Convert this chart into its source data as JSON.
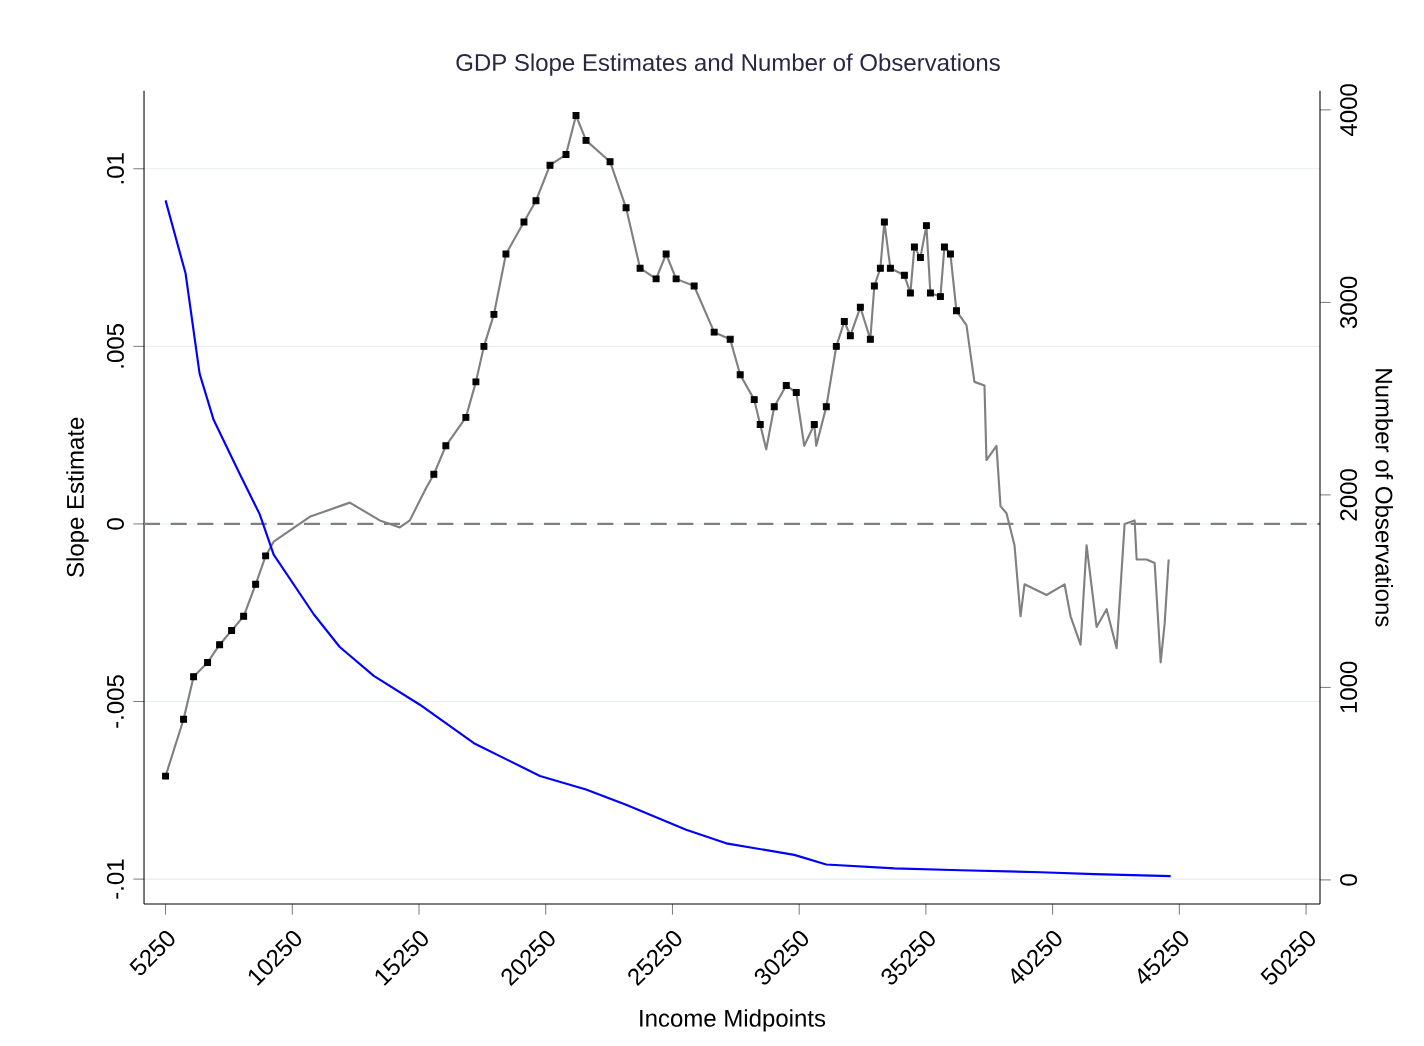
{
  "chart_data": {
    "type": "line",
    "title": "GDP Slope Estimates and Number of Observations",
    "xlabel": "Income Midpoints",
    "ylabel": "Slope Estimate",
    "y2label": "Number of Observations",
    "xlim": [
      4400,
      50800
    ],
    "xticks": [
      5250,
      10250,
      15250,
      20250,
      25250,
      30250,
      35250,
      40250,
      45250,
      50250
    ],
    "ylim": [
      -0.0107,
      0.0122
    ],
    "yticks": [
      {
        "value": -0.01,
        "label": "-.01"
      },
      {
        "value": -0.005,
        "label": "-.005"
      },
      {
        "value": 0,
        "label": "0"
      },
      {
        "value": 0.005,
        "label": ".005"
      },
      {
        "value": 0.01,
        "label": ".01"
      }
    ],
    "y2lim": [
      -125,
      4100
    ],
    "y2ticks": [
      0,
      1000,
      2000,
      3000,
      4000
    ],
    "grid": "y",
    "ref_lines": [
      {
        "axis": "y",
        "value": 0,
        "color": "#808080",
        "line_style": "dashed"
      }
    ],
    "x": [
      5250,
      5961,
      6356,
      6909,
      7383,
      7857,
      8331,
      8805,
      9200,
      9516,
      10938,
      12518,
      13703,
      14493,
      14888,
      15520,
      15836,
      16310,
      17100,
      17495,
      17811,
      18206,
      18680,
      19391,
      19865,
      20418,
      21050,
      21445,
      21840,
      22788,
      23420,
      23973,
      24605,
      25000,
      25395,
      26106,
      26896,
      27528,
      27923,
      28476,
      28713,
      28950,
      29266,
      29740,
      30135,
      30451,
      30846,
      30925,
      31320,
      31715,
      32031,
      32268,
      32663,
      33058,
      33216,
      33453,
      33611,
      33848,
      34401,
      34638,
      34796,
      35033,
      35270,
      35428,
      35823,
      35981,
      36218,
      36455,
      36850,
      37166,
      37561,
      37640,
      38035,
      38193,
      38430,
      38746,
      38983,
      39141,
      40010,
      40721,
      40958,
      41353,
      41590,
      41985,
      42380,
      42775,
      43091,
      43486,
      43565,
      43960,
      44276,
      44513,
      44671,
      44829
    ],
    "series": [
      {
        "color": "#808080",
        "line_style": "solid",
        "values": [
          -0.0071,
          -0.0055,
          -0.0043,
          -0.0039,
          -0.0034,
          -0.003,
          -0.0026,
          -0.0017,
          -0.0009,
          -0.0005,
          0.0002,
          0.0006,
          0.0001,
          -0.0001,
          0.0001,
          0.001,
          0.0014,
          0.0022,
          0.003,
          0.004,
          0.005,
          0.0059,
          0.0076,
          0.0085,
          0.0091,
          0.0101,
          0.0104,
          0.0115,
          0.0108,
          0.0102,
          0.0089,
          0.0072,
          0.0069,
          0.0076,
          0.0069,
          0.0067,
          0.0054,
          0.0052,
          0.0042,
          0.0035,
          0.0028,
          0.0021,
          0.0033,
          0.0039,
          0.0037,
          0.0022,
          0.0028,
          0.0022,
          0.0033,
          0.005,
          0.0057,
          0.0053,
          0.0061,
          0.0052,
          0.0067,
          0.0072,
          0.0085,
          0.0072,
          0.007,
          0.0065,
          0.0078,
          0.0075,
          0.0084,
          0.0065,
          0.0064,
          0.0078,
          0.0076,
          0.006,
          0.0056,
          0.004,
          0.0039,
          0.0018,
          0.0022,
          0.0005,
          0.0003,
          -0.0006,
          -0.0026,
          -0.0017,
          -0.002,
          -0.0017,
          -0.0026,
          -0.0034,
          -0.0006,
          -0.0029,
          -0.0024,
          -0.0035,
          0.0,
          0.0001,
          -0.001,
          -0.001,
          -0.0011,
          -0.0039,
          -0.0028,
          -0.001
        ]
      },
      {
        "type": "scatter",
        "color": "#000000",
        "marker": "square",
        "values": [
          -0.0071,
          -0.0055,
          -0.0043,
          -0.0039,
          -0.0034,
          -0.003,
          -0.0026,
          -0.0017,
          -0.0009,
          null,
          null,
          null,
          null,
          null,
          null,
          null,
          0.0014,
          0.0022,
          0.003,
          0.004,
          0.005,
          0.0059,
          0.0076,
          0.0085,
          0.0091,
          0.0101,
          0.0104,
          0.0115,
          0.0108,
          0.0102,
          0.0089,
          0.0072,
          0.0069,
          0.0076,
          0.0069,
          0.0067,
          0.0054,
          0.0052,
          0.0042,
          0.0035,
          0.0028,
          null,
          0.0033,
          0.0039,
          0.0037,
          null,
          0.0028,
          null,
          0.0033,
          0.005,
          0.0057,
          0.0053,
          0.0061,
          0.0052,
          0.0067,
          0.0072,
          0.0085,
          0.0072,
          0.007,
          0.0065,
          0.0078,
          0.0075,
          0.0084,
          0.0065,
          0.0064,
          0.0078,
          0.0076,
          0.006,
          null,
          null,
          null,
          null,
          null,
          null,
          null,
          null,
          null,
          null,
          null,
          null,
          null,
          null,
          null,
          null,
          null,
          null,
          null,
          null,
          null,
          null,
          null,
          null,
          null,
          null
        ]
      },
      {
        "type": "line",
        "axis": "y2",
        "color": "#0000ff",
        "line_style": "solid",
        "x": [
          5250,
          6040,
          6593,
          7146,
          8173,
          8963,
          9516,
          11096,
          12123,
          13466,
          15283,
          17416,
          20023,
          21840,
          23420,
          25790,
          27370,
          30056,
          31320,
          34006,
          36613,
          39773,
          41906,
          44908
        ],
        "values": [
          3530,
          3150,
          2630,
          2390,
          2110,
          1900,
          1690,
          1380,
          1210,
          1060,
          910,
          710,
          540,
          470,
          390,
          260,
          190,
          130,
          80,
          60,
          50,
          40,
          30,
          20
        ]
      }
    ]
  }
}
